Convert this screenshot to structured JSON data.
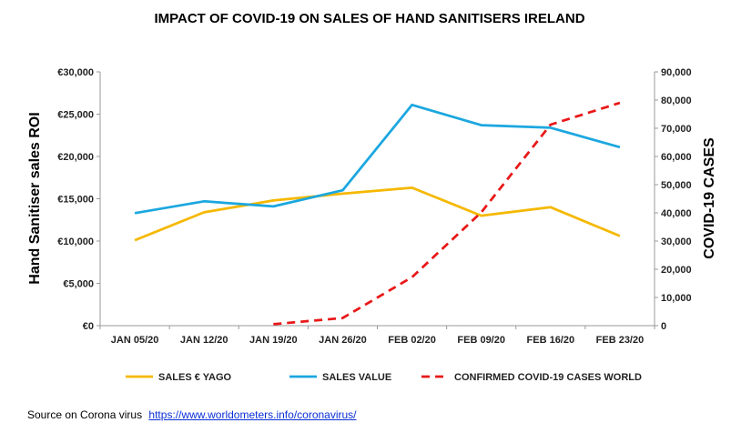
{
  "chart_data": {
    "type": "line",
    "title": "IMPACT OF COVID-19 ON SALES OF HAND SANITISERS IRELAND",
    "categories": [
      "JAN 05/20",
      "JAN 12/20",
      "JAN 19/20",
      "JAN 26/20",
      "FEB 02/20",
      "FEB 09/20",
      "FEB 16/20",
      "FEB 23/20"
    ],
    "ylabel": "Hand Sanitiser sales ROI",
    "y2label": "COVID-19 CASES",
    "ylim": [
      0,
      30000
    ],
    "y2lim": [
      0,
      90000
    ],
    "yticks": [
      "€0",
      "€5,000",
      "€10,000",
      "€15,000",
      "€20,000",
      "€25,000",
      "€30,000"
    ],
    "y2ticks": [
      "0",
      "10,000",
      "20,000",
      "30,000",
      "40,000",
      "50,000",
      "60,000",
      "70,000",
      "80,000",
      "90,000"
    ],
    "series": [
      {
        "name": "SALES € YAGO",
        "axis": "left",
        "color": "#f5b800",
        "dash": false,
        "values": [
          10100,
          13400,
          14800,
          15600,
          16300,
          13000,
          14000,
          10600
        ]
      },
      {
        "name": "SALES VALUE",
        "axis": "left",
        "color": "#1ba7df",
        "dash": false,
        "values": [
          13300,
          14700,
          14100,
          16000,
          26100,
          23700,
          23400,
          21100
        ]
      },
      {
        "name": "CONFIRMED COVID-19 CASES  WORLD",
        "axis": "right",
        "color": "#e81818",
        "dash": true,
        "values": [
          null,
          null,
          500,
          2700,
          17200,
          40200,
          71300,
          79000
        ]
      }
    ],
    "legend_position": "bottom",
    "grid": false
  },
  "source": {
    "label": "Source on Corona virus",
    "link": "https://www.worldometers.info/coronavirus/"
  }
}
